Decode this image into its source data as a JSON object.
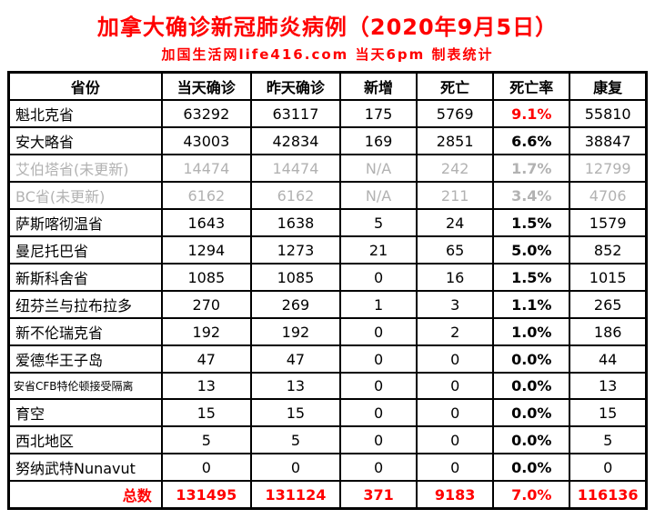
{
  "title": "加拿大确诊新冠肺炎病例（2020年9月5日）",
  "subtitle": "加国生活网life416.com 当天6pm 制表统计",
  "colors": {
    "accent_red": "#ff0000",
    "muted_gray": "#b2b2b2",
    "border_black": "#000000"
  },
  "chart_data": {
    "type": "table",
    "title": "加拿大确诊新冠肺炎病例（2020年9月5日）",
    "subtitle": "加国生活网life416.com 当天6pm 制表统计",
    "columns": [
      "省份",
      "当天确诊",
      "昨天确诊",
      "新增",
      "死亡",
      "死亡率",
      "康复"
    ],
    "rows": [
      {
        "cells": [
          "魁北克省",
          "63292",
          "63117",
          "175",
          "5769",
          "9.1%",
          "55810"
        ],
        "rate_red": true
      },
      {
        "cells": [
          "安大略省",
          "43003",
          "42834",
          "169",
          "2851",
          "6.6%",
          "38847"
        ]
      },
      {
        "cells": [
          "艾伯塔省(未更新)",
          "14474",
          "14474",
          "N/A",
          "242",
          "1.7%",
          "12799"
        ],
        "muted": true
      },
      {
        "cells": [
          "BC省(未更新)",
          "6162",
          "6162",
          "N/A",
          "211",
          "3.4%",
          "4706"
        ],
        "muted": true
      },
      {
        "cells": [
          "萨斯喀彻温省",
          "1643",
          "1638",
          "5",
          "24",
          "1.5%",
          "1579"
        ]
      },
      {
        "cells": [
          "曼尼托巴省",
          "1294",
          "1273",
          "21",
          "65",
          "5.0%",
          "852"
        ]
      },
      {
        "cells": [
          "新斯科舍省",
          "1085",
          "1085",
          "0",
          "16",
          "1.5%",
          "1015"
        ]
      },
      {
        "cells": [
          "纽芬兰与拉布拉多",
          "270",
          "269",
          "1",
          "3",
          "1.1%",
          "265"
        ]
      },
      {
        "cells": [
          "新不伦瑞克省",
          "192",
          "192",
          "0",
          "2",
          "1.0%",
          "186"
        ]
      },
      {
        "cells": [
          "爱德华王子岛",
          "47",
          "47",
          "0",
          "0",
          "0.0%",
          "44"
        ]
      },
      {
        "cells": [
          "安省CFB特伦顿接受隔离",
          "13",
          "13",
          "0",
          "0",
          "0.0%",
          "13"
        ],
        "small": true
      },
      {
        "cells": [
          "育空",
          "15",
          "15",
          "0",
          "0",
          "0.0%",
          "15"
        ]
      },
      {
        "cells": [
          "西北地区",
          "5",
          "5",
          "0",
          "0",
          "0.0%",
          "5"
        ]
      },
      {
        "cells": [
          "努纳武特Nunavut",
          "0",
          "0",
          "0",
          "0",
          "0.0%",
          "0"
        ]
      }
    ],
    "total_row": {
      "cells": [
        "总数",
        "131495",
        "131124",
        "371",
        "9183",
        "7.0%",
        "116136"
      ]
    }
  }
}
